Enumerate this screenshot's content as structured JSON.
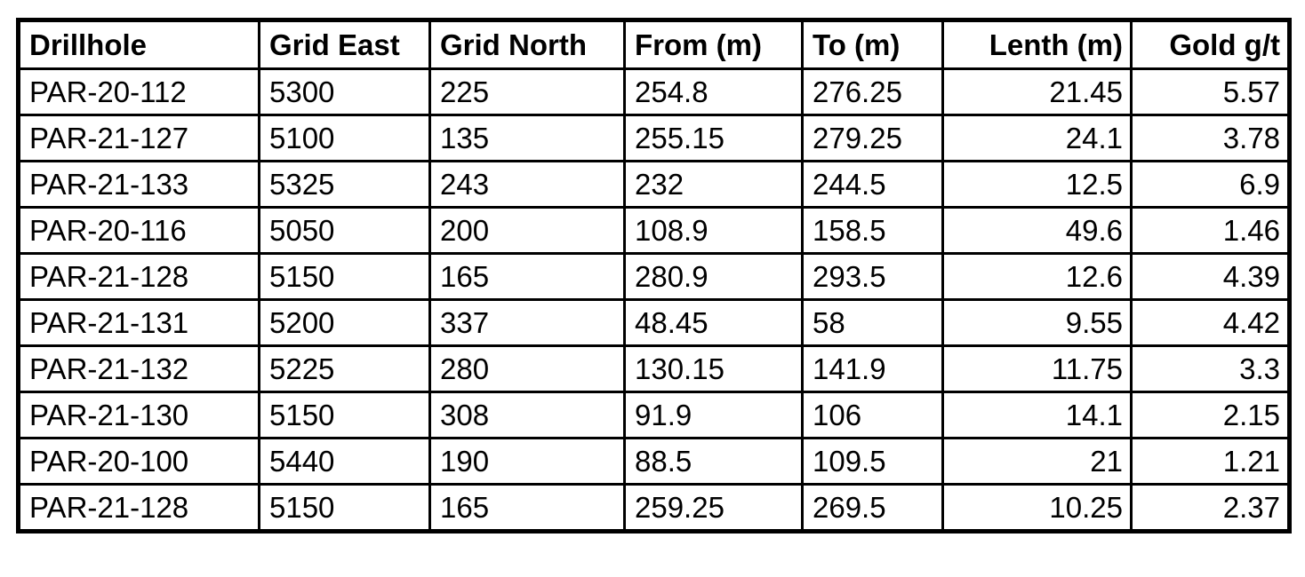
{
  "table": {
    "headers": [
      "Drillhole",
      "Grid East",
      "Grid North",
      "From (m)",
      "To (m)",
      "Lenth (m)",
      "Gold g/t"
    ],
    "rows": [
      [
        "PAR-20-112",
        "5300",
        "225",
        "254.8",
        "276.25",
        "21.45",
        "5.57"
      ],
      [
        "PAR-21-127",
        "5100",
        "135",
        "255.15",
        "279.25",
        "24.1",
        "3.78"
      ],
      [
        "PAR-21-133",
        "5325",
        "243",
        "232",
        "244.5",
        "12.5",
        "6.9"
      ],
      [
        "PAR-20-116",
        "5050",
        "200",
        "108.9",
        "158.5",
        "49.6",
        "1.46"
      ],
      [
        "PAR-21-128",
        "5150",
        "165",
        "280.9",
        "293.5",
        "12.6",
        "4.39"
      ],
      [
        "PAR-21-131",
        "5200",
        "337",
        "48.45",
        "58",
        "9.55",
        "4.42"
      ],
      [
        "PAR-21-132",
        "5225",
        "280",
        "130.15",
        "141.9",
        "11.75",
        "3.3"
      ],
      [
        "PAR-21-130",
        "5150",
        "308",
        "91.9",
        "106",
        "14.1",
        "2.15"
      ],
      [
        "PAR-20-100",
        "5440",
        "190",
        "88.5",
        "109.5",
        "21",
        "1.21"
      ],
      [
        "PAR-21-128",
        "5150",
        "165",
        "259.25",
        "269.5",
        "10.25",
        "2.37"
      ]
    ]
  }
}
